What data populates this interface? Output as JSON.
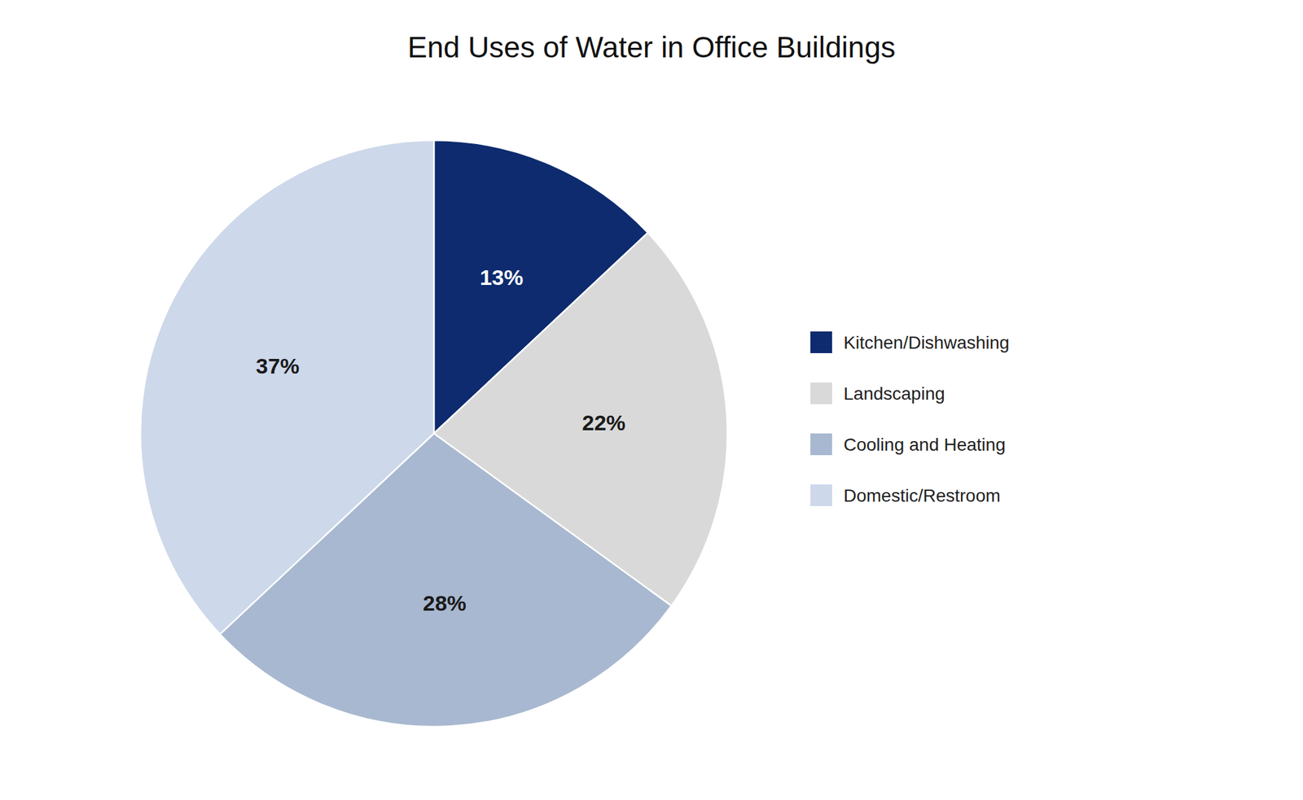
{
  "chart_data": {
    "type": "pie",
    "title": "End Uses of Water in Office Buildings",
    "categories": [
      "Kitchen/Dishwashing",
      "Landscaping",
      "Cooling and Heating",
      "Domestic/Restroom"
    ],
    "values": [
      13,
      22,
      28,
      37
    ],
    "value_labels": [
      "13%",
      "22%",
      "28%",
      "37%"
    ],
    "colors": [
      "#0d2b6e",
      "#d9d9d9",
      "#a8b8d0",
      "#cdd8ea"
    ],
    "data_labels": true,
    "legend": "right"
  }
}
